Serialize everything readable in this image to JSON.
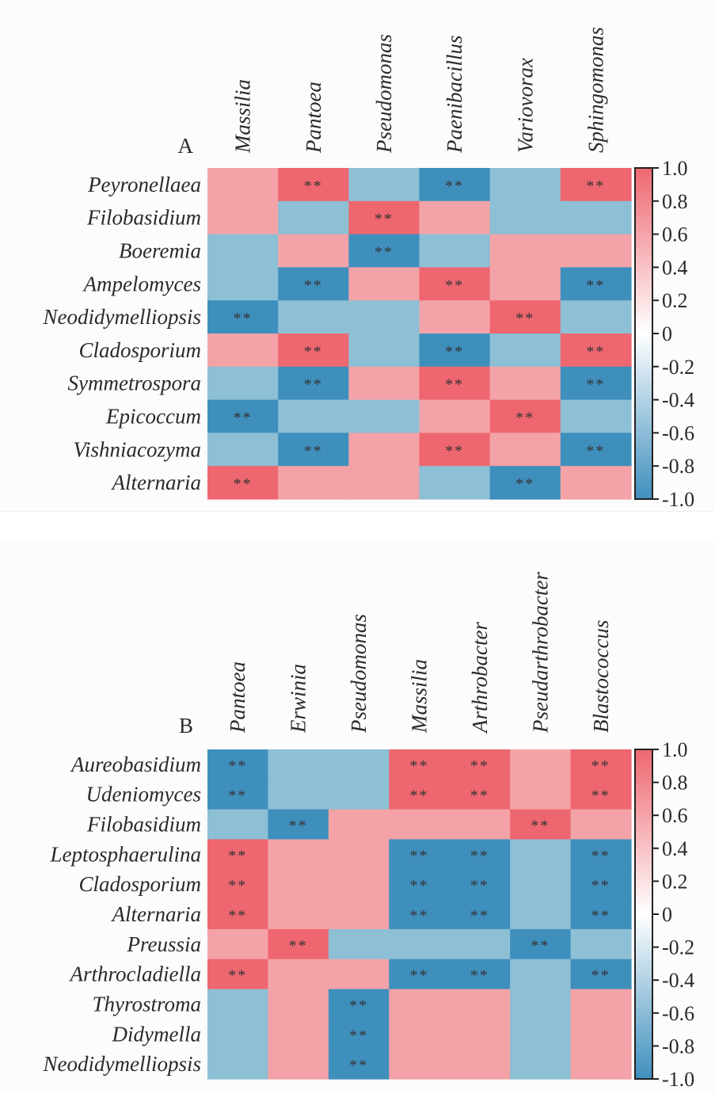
{
  "figure": {
    "colors": {
      "strong_pos": "#ee6770",
      "weak_pos": "#f3a3a7",
      "weak_neg": "#8dbfd5",
      "strong_neg": "#3f8fbd",
      "colorbar_top": "#ee6770",
      "colorbar_mid": "#ffffff",
      "colorbar_bottom": "#3f8fbd"
    },
    "significance_marker": "**"
  },
  "chart_data": [
    {
      "type": "heatmap",
      "panel_label": "A",
      "title": "",
      "xlabel": "",
      "ylabel": "",
      "columns": [
        "Massilia",
        "Pantoea",
        "Pseudomonas",
        "Paenibacillus",
        "Variovorax",
        "Sphingomonas"
      ],
      "rows": [
        "Peyronellaea",
        "Filobasidium",
        "Boeremia",
        "Ampelomyces",
        "Neodidymelliopsis",
        "Cladosporium",
        "Symmetrospora",
        "Epicoccum",
        "Vishniacozyma",
        "Alternaria"
      ],
      "values": [
        [
          0.4,
          0.8,
          -0.4,
          -0.8,
          -0.4,
          0.8
        ],
        [
          0.4,
          -0.4,
          0.8,
          0.4,
          -0.4,
          -0.4
        ],
        [
          -0.4,
          0.4,
          -0.8,
          -0.4,
          0.4,
          0.4
        ],
        [
          -0.4,
          -0.8,
          0.4,
          0.8,
          0.4,
          -0.8
        ],
        [
          -0.8,
          -0.4,
          -0.4,
          0.4,
          0.8,
          -0.4
        ],
        [
          0.4,
          0.8,
          -0.4,
          -0.8,
          -0.4,
          0.8
        ],
        [
          -0.4,
          -0.8,
          0.4,
          0.8,
          0.4,
          -0.8
        ],
        [
          -0.8,
          -0.4,
          -0.4,
          0.4,
          0.8,
          -0.4
        ],
        [
          -0.4,
          -0.8,
          0.4,
          0.8,
          0.4,
          -0.8
        ],
        [
          0.8,
          0.4,
          0.4,
          -0.4,
          -0.8,
          0.4
        ]
      ],
      "significant": [
        [
          false,
          true,
          false,
          true,
          false,
          true
        ],
        [
          false,
          false,
          true,
          false,
          false,
          false
        ],
        [
          false,
          false,
          true,
          false,
          false,
          false
        ],
        [
          false,
          true,
          false,
          true,
          false,
          true
        ],
        [
          true,
          false,
          false,
          false,
          true,
          false
        ],
        [
          false,
          true,
          false,
          true,
          false,
          true
        ],
        [
          false,
          true,
          false,
          true,
          false,
          true
        ],
        [
          true,
          false,
          false,
          false,
          true,
          false
        ],
        [
          false,
          true,
          false,
          true,
          false,
          true
        ],
        [
          true,
          false,
          false,
          false,
          true,
          false
        ]
      ],
      "colorbar": {
        "range": [
          -1.0,
          1.0
        ],
        "ticks": [
          "1.0",
          "0.8",
          "0.6",
          "0.4",
          "0.2",
          "0",
          "-0.2",
          "-0.4",
          "-0.6",
          "-0.8",
          "-1.0"
        ],
        "placement": "right"
      }
    },
    {
      "type": "heatmap",
      "panel_label": "B",
      "title": "",
      "xlabel": "",
      "ylabel": "",
      "columns": [
        "Pantoea",
        "Erwinia",
        "Pseudomonas",
        "Massilia",
        "Arthrobacter",
        "Pseudarthrobacter",
        "Blastococcus"
      ],
      "rows": [
        "Aureobasidium",
        "Udeniomyces",
        "Filobasidium",
        "Leptosphaerulina",
        "Cladosporium",
        "Alternaria",
        "Preussia",
        "Arthrocladiella",
        "Thyrostroma",
        "Didymella",
        "Neodidymelliopsis"
      ],
      "values": [
        [
          -0.8,
          -0.4,
          -0.4,
          0.8,
          0.8,
          0.4,
          0.8
        ],
        [
          -0.8,
          -0.4,
          -0.4,
          0.8,
          0.8,
          0.4,
          0.8
        ],
        [
          -0.4,
          -0.8,
          0.4,
          0.4,
          0.4,
          0.8,
          0.4
        ],
        [
          0.8,
          0.4,
          0.4,
          -0.8,
          -0.8,
          -0.4,
          -0.8
        ],
        [
          0.8,
          0.4,
          0.4,
          -0.8,
          -0.8,
          -0.4,
          -0.8
        ],
        [
          0.8,
          0.4,
          0.4,
          -0.8,
          -0.8,
          -0.4,
          -0.8
        ],
        [
          0.4,
          0.8,
          -0.4,
          -0.4,
          -0.4,
          -0.8,
          -0.4
        ],
        [
          0.8,
          0.4,
          0.4,
          -0.8,
          -0.8,
          -0.4,
          -0.8
        ],
        [
          -0.4,
          0.4,
          -0.8,
          0.4,
          0.4,
          -0.4,
          0.4
        ],
        [
          -0.4,
          0.4,
          -0.8,
          0.4,
          0.4,
          -0.4,
          0.4
        ],
        [
          -0.4,
          0.4,
          -0.8,
          0.4,
          0.4,
          -0.4,
          0.4
        ]
      ],
      "significant": [
        [
          true,
          false,
          false,
          true,
          true,
          false,
          true
        ],
        [
          true,
          false,
          false,
          true,
          true,
          false,
          true
        ],
        [
          false,
          true,
          false,
          false,
          false,
          true,
          false
        ],
        [
          true,
          false,
          false,
          true,
          true,
          false,
          true
        ],
        [
          true,
          false,
          false,
          true,
          true,
          false,
          true
        ],
        [
          true,
          false,
          false,
          true,
          true,
          false,
          true
        ],
        [
          false,
          true,
          false,
          false,
          false,
          true,
          false
        ],
        [
          true,
          false,
          false,
          true,
          true,
          false,
          true
        ],
        [
          false,
          false,
          true,
          false,
          false,
          false,
          false
        ],
        [
          false,
          false,
          true,
          false,
          false,
          false,
          false
        ],
        [
          false,
          false,
          true,
          false,
          false,
          false,
          false
        ]
      ],
      "colorbar": {
        "range": [
          -1.0,
          1.0
        ],
        "ticks": [
          "1.0",
          "0.8",
          "0.6",
          "0.4",
          "0.2",
          "0",
          "-0.2",
          "-0.4",
          "-0.6",
          "-0.8",
          "-1.0"
        ],
        "placement": "right"
      }
    }
  ]
}
